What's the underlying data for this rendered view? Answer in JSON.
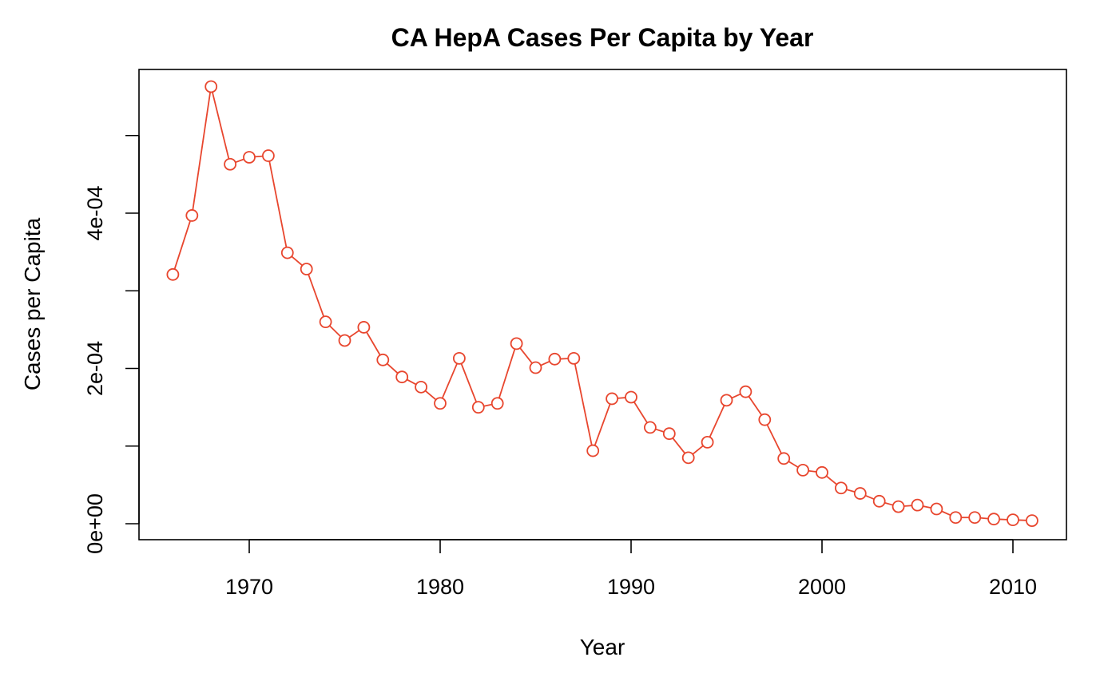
{
  "chart_data": {
    "type": "line",
    "title": "CA HepA Cases Per Capita by Year",
    "xlabel": "Year",
    "ylabel": "Cases per Capita",
    "x_ticks": [
      1970,
      1980,
      1990,
      2000,
      2010
    ],
    "x_tick_labels": [
      "1970",
      "1980",
      "1990",
      "2000",
      "2010"
    ],
    "y_ticks": [
      0,
      0.0001,
      0.0002,
      0.0003,
      0.0004,
      0.0005
    ],
    "y_tick_labels": [
      "0e+00",
      "",
      "2e-04",
      "",
      "4e-04",
      ""
    ],
    "xlim": [
      1964.2,
      1912.8
    ],
    "ylim": [
      -4e-05,
      0.00058
    ],
    "grid": false,
    "legend": "none",
    "markers": "open-circle",
    "series_color": "#E8462E",
    "series": [
      {
        "x": [
          1966,
          1967,
          1968,
          1969,
          1970,
          1971,
          1972,
          1973,
          1974,
          1975,
          1976,
          1977,
          1978,
          1979,
          1980,
          1981,
          1982,
          1983,
          1984,
          1985,
          1986,
          1987,
          1988,
          1989,
          1990,
          1991,
          1992,
          1993,
          1994,
          1995,
          1996,
          1997,
          1998,
          1999,
          2000,
          2001,
          2002,
          2003,
          2004,
          2005,
          2006,
          2007,
          2008,
          2009,
          2010,
          2011
        ],
        "values": [
          0.000321,
          0.000397,
          0.000563,
          0.000463,
          0.000472,
          0.000474,
          0.000349,
          0.000328,
          0.00026,
          0.000236,
          0.000253,
          0.000211,
          0.000189,
          0.000176,
          0.000155,
          0.000213,
          0.00015,
          0.000155,
          0.000232,
          0.000201,
          0.000212,
          0.000213,
          9.4e-05,
          0.000161,
          0.000163,
          0.000124,
          0.000116,
          8.5e-05,
          0.000105,
          0.000159,
          0.00017,
          0.000134,
          8.4e-05,
          6.9e-05,
          6.6e-05,
          4.6e-05,
          3.9e-05,
          2.9e-05,
          2.2e-05,
          2.4e-05,
          1.9e-05,
          8e-06,
          8e-06,
          6e-06,
          5e-06,
          4e-06
        ]
      }
    ]
  }
}
